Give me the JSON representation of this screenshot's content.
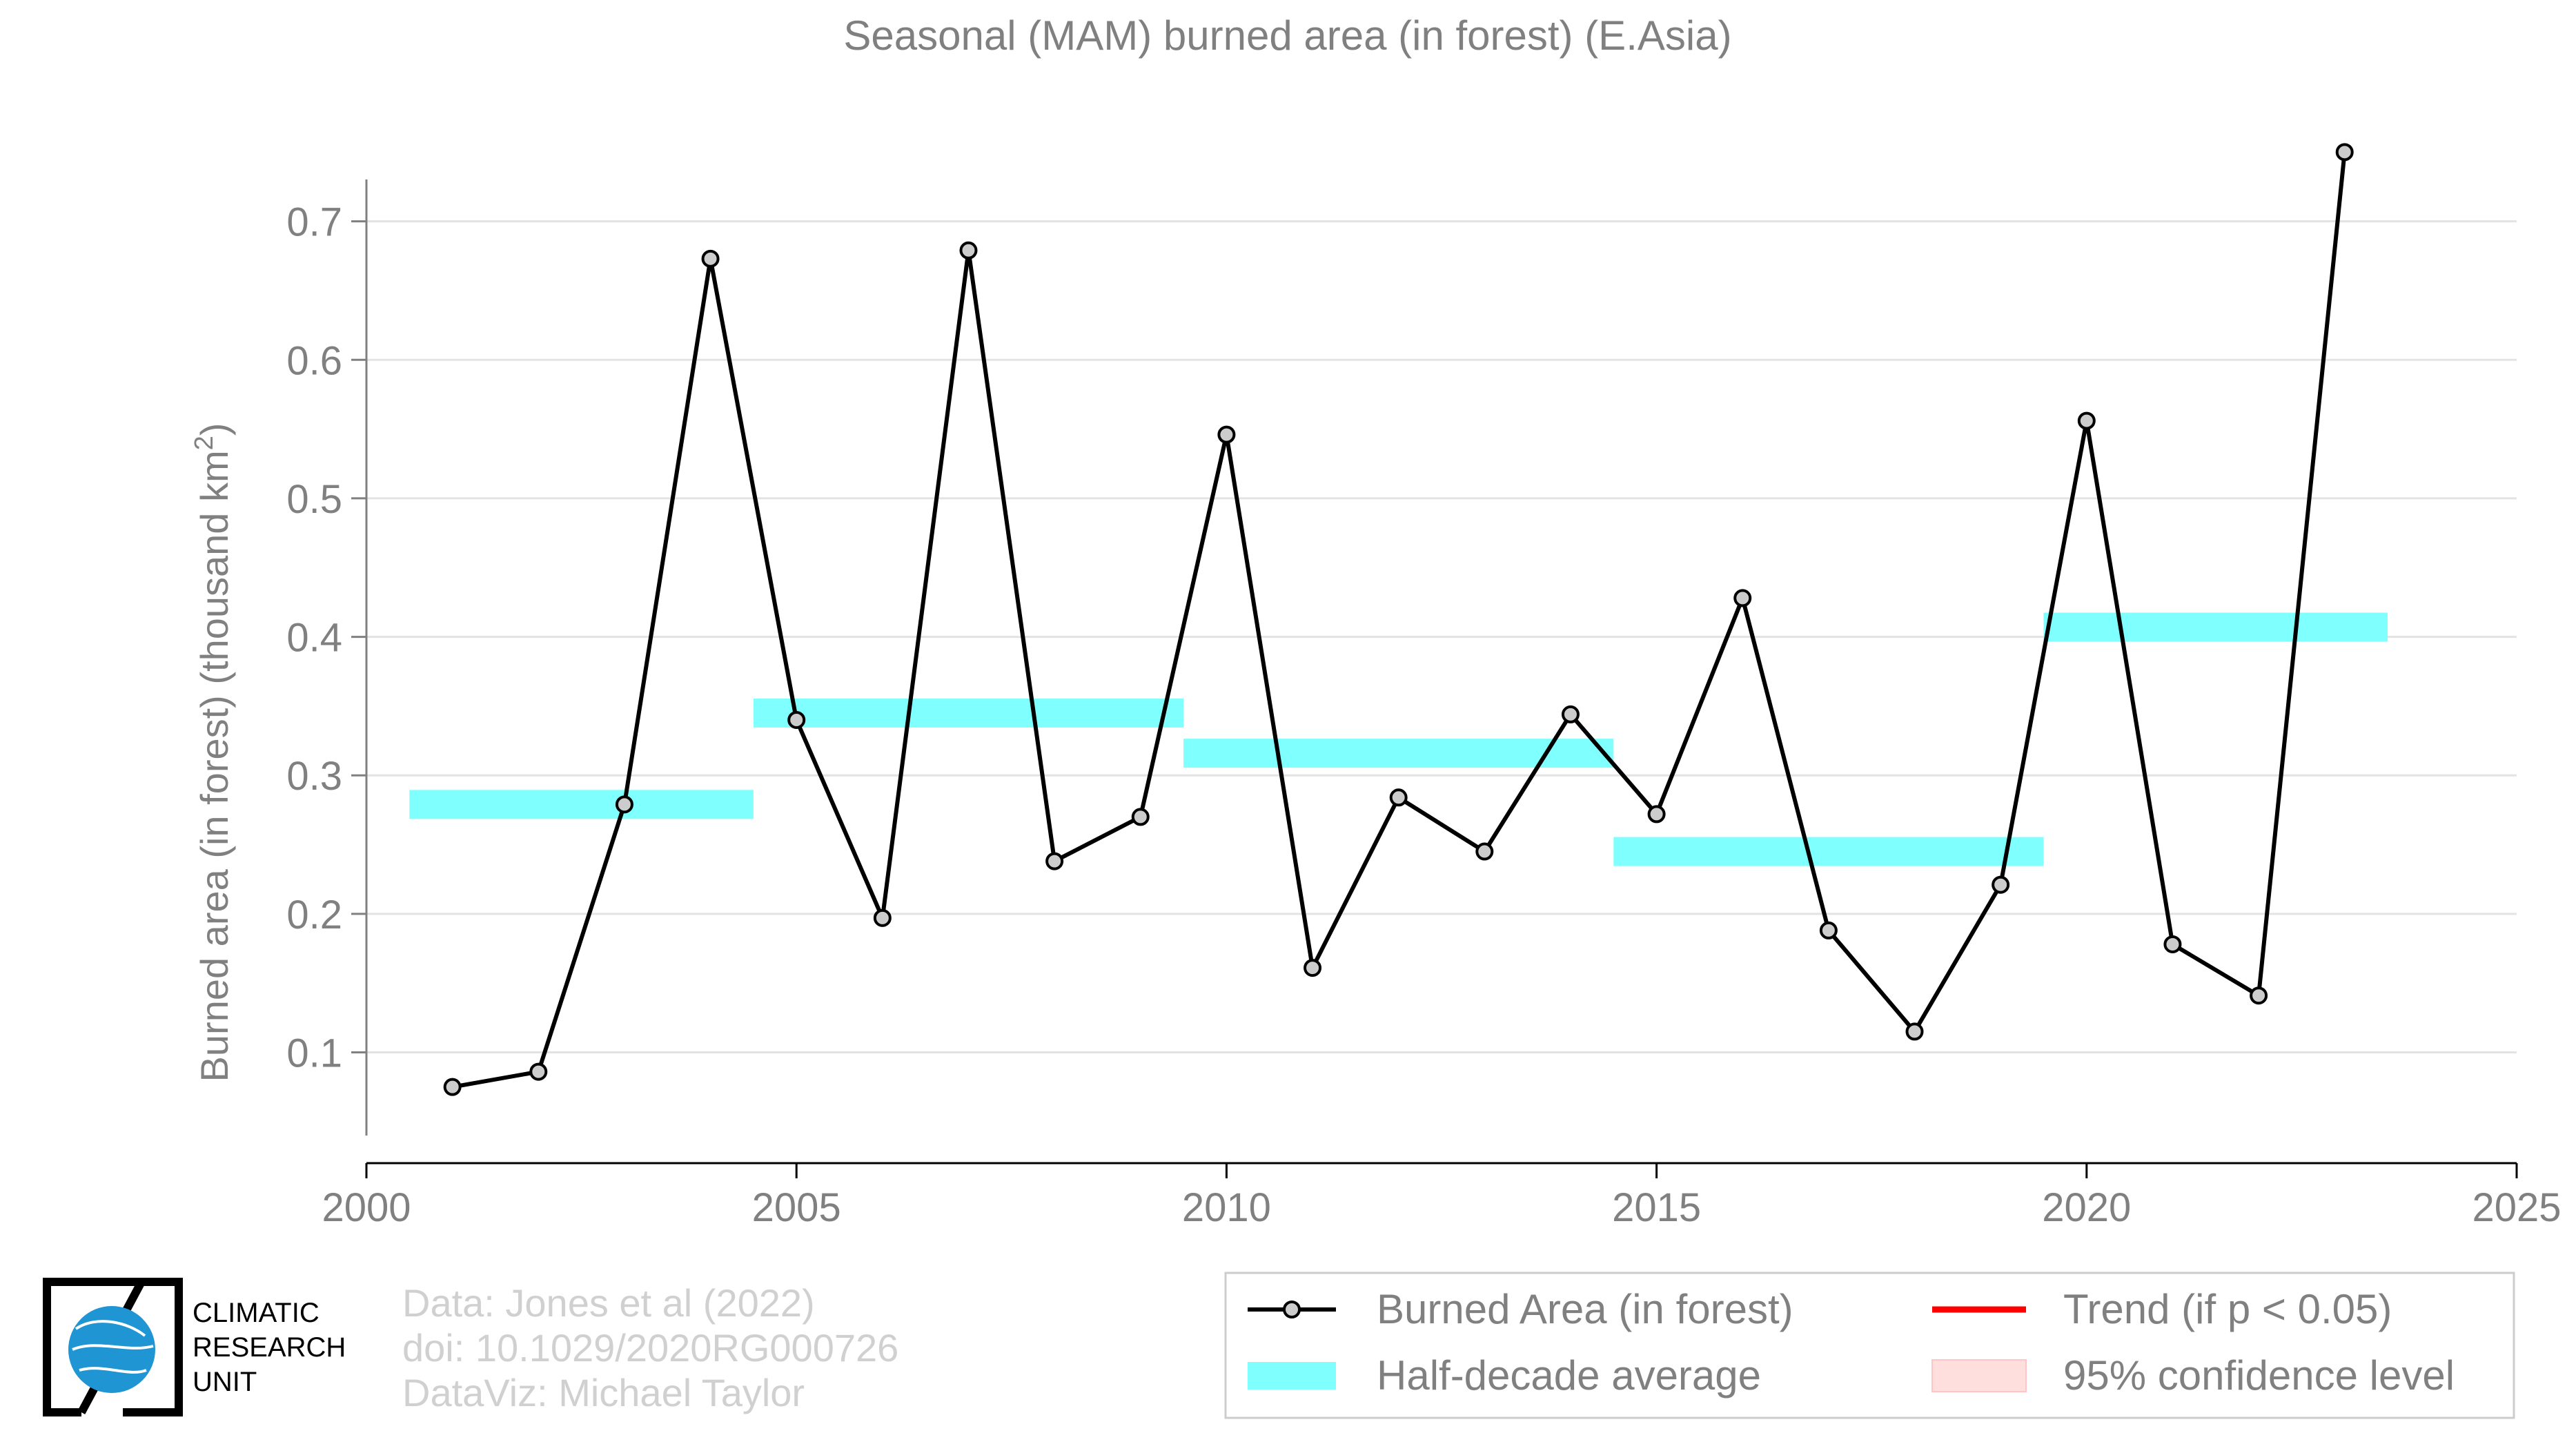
{
  "chart_data": {
    "type": "line",
    "title": "Seasonal (MAM) burned area (in forest) (E.Asia)",
    "xlabel": "",
    "ylabel": "Burned area (in forest) (thousand km",
    "ylabel_sup": "2",
    "ylabel_close": ")",
    "xlim": [
      2000,
      2025
    ],
    "ylim": [
      0.02,
      0.8
    ],
    "xticks": [
      "2000",
      "2005",
      "2010",
      "2015",
      "2020",
      "2025"
    ],
    "yticks": [
      "0.1",
      "0.2",
      "0.3",
      "0.4",
      "0.5",
      "0.6",
      "0.7"
    ],
    "grid": "horizontal",
    "series": [
      {
        "name": "Burned Area (in forest)",
        "color": "#000000",
        "marker_fill": "#cccccc",
        "x": [
          2001,
          2002,
          2003,
          2004,
          2005,
          2006,
          2007,
          2008,
          2009,
          2010,
          2011,
          2012,
          2013,
          2014,
          2015,
          2016,
          2017,
          2018,
          2019,
          2020,
          2021,
          2022,
          2023
        ],
        "y": [
          0.075,
          0.086,
          0.279,
          0.673,
          0.34,
          0.197,
          0.679,
          0.238,
          0.27,
          0.546,
          0.161,
          0.284,
          0.245,
          0.344,
          0.272,
          0.428,
          0.188,
          0.115,
          0.221,
          0.556,
          0.178,
          0.141,
          0.75
        ]
      }
    ],
    "half_decade_average": {
      "name": "Half-decade average",
      "color": "#80ffff",
      "segments": [
        {
          "x0": 2000.5,
          "x1": 2004.5,
          "y": 0.279
        },
        {
          "x0": 2004.5,
          "x1": 2009.5,
          "y": 0.345
        },
        {
          "x0": 2009.5,
          "x1": 2014.5,
          "y": 0.316
        },
        {
          "x0": 2014.5,
          "x1": 2019.5,
          "y": 0.245
        },
        {
          "x0": 2019.5,
          "x1": 2023.5,
          "y": 0.407
        }
      ]
    },
    "legend": {
      "position": "bottom-right",
      "items": [
        {
          "label": "Burned Area (in forest)",
          "kind": "line-marker",
          "color": "#000000"
        },
        {
          "label": "Trend (if p < 0.05)",
          "kind": "line",
          "color": "#ff0000"
        },
        {
          "label": "Half-decade average",
          "kind": "band",
          "color": "#80ffff"
        },
        {
          "label": "95% confidence level",
          "kind": "box",
          "color": "#ffdede"
        }
      ]
    }
  },
  "footer": {
    "logo_lines": [
      "CLIMATIC",
      "RESEARCH",
      "UNIT"
    ],
    "credits": [
      "Data: Jones et al (2022)",
      "doi: 10.1029/2020RG000726",
      "DataViz: Michael Taylor"
    ]
  }
}
